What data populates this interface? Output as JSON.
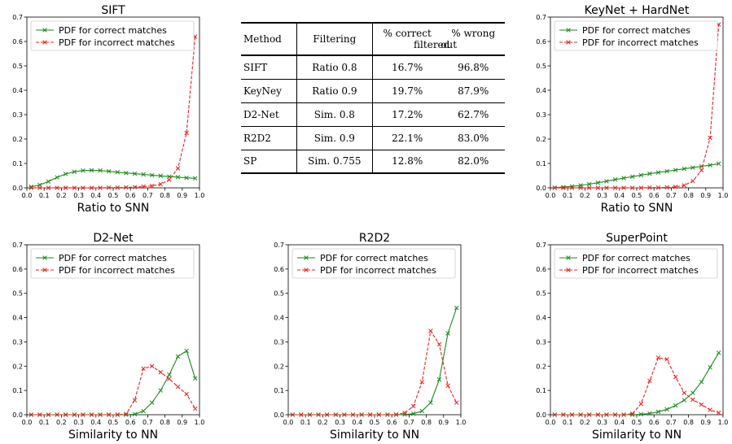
{
  "table": {
    "headers": [
      "Method",
      "Filtering",
      "% correct filtered",
      "% wrong out"
    ],
    "header_lines": [
      [
        "Method"
      ],
      [
        "Filtering"
      ],
      [
        "% correct",
        "filtered"
      ],
      [
        "% wrong",
        "out"
      ]
    ],
    "rows": [
      [
        "SIFT",
        "Ratio 0.8",
        "16.7%",
        "96.8%"
      ],
      [
        "KeyNey",
        "Ratio 0.9",
        "19.7%",
        "87.9%"
      ],
      [
        "D2-Net",
        "Sim. 0.8",
        "17.2%",
        "62.7%"
      ],
      [
        "R2D2",
        "Sim. 0.9",
        "22.1%",
        "83.0%"
      ],
      [
        "SP",
        "Sim. 0.755",
        "12.8%",
        "82.0%"
      ]
    ]
  },
  "colors": {
    "correct": "#1a8a1a",
    "incorrect": "#e8231f"
  },
  "chart_data": [
    {
      "type": "line",
      "title": "SIFT",
      "xlabel": "Ratio to SNN",
      "ylabel": "",
      "xlim": [
        0,
        1.0
      ],
      "ylim": [
        0,
        0.7
      ],
      "xticks": [
        "0.0",
        "0.1",
        "0.2",
        "0.3",
        "0.4",
        "0.5",
        "0.6",
        "0.7",
        "0.8",
        "0.9",
        "1.0"
      ],
      "yticks": [
        "0.0",
        "0.1",
        "0.2",
        "0.3",
        "0.4",
        "0.5",
        "0.6",
        "0.7"
      ],
      "grid": false,
      "legend": "top-left",
      "series": [
        {
          "name": "PDF for correct matches",
          "color": "#1a8a1a",
          "line": "solid",
          "marker": "x",
          "x": [
            0.025,
            0.075,
            0.125,
            0.175,
            0.225,
            0.275,
            0.325,
            0.375,
            0.425,
            0.475,
            0.525,
            0.575,
            0.625,
            0.675,
            0.725,
            0.775,
            0.825,
            0.875,
            0.925,
            0.975
          ],
          "y": [
            0.004,
            0.012,
            0.026,
            0.043,
            0.057,
            0.066,
            0.071,
            0.072,
            0.071,
            0.068,
            0.064,
            0.061,
            0.058,
            0.055,
            0.052,
            0.049,
            0.046,
            0.044,
            0.041,
            0.039
          ]
        },
        {
          "name": "PDF for incorrect matches",
          "color": "#e8231f",
          "line": "dashed",
          "marker": "x",
          "x": [
            0.025,
            0.075,
            0.125,
            0.175,
            0.225,
            0.275,
            0.325,
            0.375,
            0.425,
            0.475,
            0.525,
            0.575,
            0.625,
            0.675,
            0.725,
            0.775,
            0.825,
            0.875,
            0.925,
            0.975
          ],
          "y": [
            0,
            0,
            0,
            0,
            0,
            0,
            0,
            0,
            0,
            0.001,
            0.001,
            0.002,
            0.003,
            0.005,
            0.008,
            0.015,
            0.033,
            0.08,
            0.225,
            0.62
          ]
        }
      ]
    },
    {
      "type": "line",
      "title": "KeyNet + HardNet",
      "xlabel": "Ratio to SNN",
      "ylabel": "",
      "xlim": [
        0,
        1.0
      ],
      "ylim": [
        0,
        0.7
      ],
      "xticks": [
        "0.0",
        "0.1",
        "0.2",
        "0.3",
        "0.4",
        "0.5",
        "0.6",
        "0.7",
        "0.8",
        "0.9",
        "1.0"
      ],
      "yticks": [
        "0.0",
        "0.1",
        "0.2",
        "0.3",
        "0.4",
        "0.5",
        "0.6",
        "0.7"
      ],
      "grid": false,
      "legend": "top-left",
      "series": [
        {
          "name": "PDF for correct matches",
          "color": "#1a8a1a",
          "line": "solid",
          "marker": "x",
          "x": [
            0.025,
            0.075,
            0.125,
            0.175,
            0.225,
            0.275,
            0.325,
            0.375,
            0.425,
            0.475,
            0.525,
            0.575,
            0.625,
            0.675,
            0.725,
            0.775,
            0.825,
            0.875,
            0.925,
            0.975
          ],
          "y": [
            0.001,
            0.003,
            0.006,
            0.01,
            0.015,
            0.021,
            0.027,
            0.034,
            0.04,
            0.046,
            0.052,
            0.058,
            0.063,
            0.068,
            0.073,
            0.078,
            0.083,
            0.088,
            0.093,
            0.099
          ]
        },
        {
          "name": "PDF for incorrect matches",
          "color": "#e8231f",
          "line": "dashed",
          "marker": "x",
          "x": [
            0.025,
            0.075,
            0.125,
            0.175,
            0.225,
            0.275,
            0.325,
            0.375,
            0.425,
            0.475,
            0.525,
            0.575,
            0.625,
            0.675,
            0.725,
            0.775,
            0.825,
            0.875,
            0.925,
            0.975
          ],
          "y": [
            0,
            0,
            0,
            0,
            0,
            0,
            0,
            0,
            0,
            0,
            0,
            0.001,
            0.001,
            0.002,
            0.004,
            0.01,
            0.028,
            0.072,
            0.205,
            0.67
          ]
        }
      ]
    },
    {
      "type": "line",
      "title": "D2-Net",
      "xlabel": "Similarity to NN",
      "ylabel": "",
      "xlim": [
        0,
        1.0
      ],
      "ylim": [
        0,
        0.7
      ],
      "xticks": [
        "0.0",
        "0.1",
        "0.2",
        "0.3",
        "0.4",
        "0.5",
        "0.6",
        "0.7",
        "0.8",
        "0.9",
        "1.0"
      ],
      "yticks": [
        "0.0",
        "0.1",
        "0.2",
        "0.3",
        "0.4",
        "0.5",
        "0.6",
        "0.7"
      ],
      "grid": false,
      "legend": "top-left",
      "series": [
        {
          "name": "PDF for correct matches",
          "color": "#1a8a1a",
          "line": "solid",
          "marker": "x",
          "x": [
            0.025,
            0.075,
            0.125,
            0.175,
            0.225,
            0.275,
            0.325,
            0.375,
            0.425,
            0.475,
            0.525,
            0.575,
            0.625,
            0.675,
            0.725,
            0.775,
            0.825,
            0.875,
            0.925,
            0.975
          ],
          "y": [
            0,
            0,
            0,
            0,
            0,
            0,
            0,
            0,
            0,
            0,
            0,
            0,
            0.002,
            0.015,
            0.05,
            0.1,
            0.165,
            0.24,
            0.263,
            0.15
          ]
        },
        {
          "name": "PDF for incorrect matches",
          "color": "#e8231f",
          "line": "dashed",
          "marker": "x",
          "x": [
            0.025,
            0.075,
            0.125,
            0.175,
            0.225,
            0.275,
            0.325,
            0.375,
            0.425,
            0.475,
            0.525,
            0.575,
            0.625,
            0.675,
            0.725,
            0.775,
            0.825,
            0.875,
            0.925,
            0.975
          ],
          "y": [
            0,
            0,
            0,
            0,
            0,
            0,
            0,
            0,
            0,
            0,
            0,
            0.003,
            0.06,
            0.19,
            0.2,
            0.175,
            0.148,
            0.115,
            0.085,
            0.025
          ]
        }
      ]
    },
    {
      "type": "line",
      "title": "R2D2",
      "xlabel": "Similarity to NN",
      "ylabel": "",
      "xlim": [
        0,
        1.0
      ],
      "ylim": [
        0,
        0.7
      ],
      "xticks": [
        "0.0",
        "0.1",
        "0.2",
        "0.3",
        "0.4",
        "0.5",
        "0.6",
        "0.7",
        "0.8",
        "0.9",
        "1.0"
      ],
      "yticks": [
        "0.0",
        "0.1",
        "0.2",
        "0.3",
        "0.4",
        "0.5",
        "0.6",
        "0.7"
      ],
      "grid": false,
      "legend": "top-left",
      "series": [
        {
          "name": "PDF for correct matches",
          "color": "#1a8a1a",
          "line": "solid",
          "marker": "x",
          "x": [
            0.025,
            0.075,
            0.125,
            0.175,
            0.225,
            0.275,
            0.325,
            0.375,
            0.425,
            0.475,
            0.525,
            0.575,
            0.625,
            0.675,
            0.725,
            0.775,
            0.825,
            0.875,
            0.925,
            0.975
          ],
          "y": [
            0,
            0,
            0,
            0,
            0,
            0,
            0,
            0,
            0,
            0,
            0,
            0,
            0,
            0.001,
            0.004,
            0.015,
            0.05,
            0.145,
            0.335,
            0.44
          ]
        },
        {
          "name": "PDF for incorrect matches",
          "color": "#e8231f",
          "line": "dashed",
          "marker": "x",
          "x": [
            0.025,
            0.075,
            0.125,
            0.175,
            0.225,
            0.275,
            0.325,
            0.375,
            0.425,
            0.475,
            0.525,
            0.575,
            0.625,
            0.675,
            0.725,
            0.775,
            0.825,
            0.875,
            0.925,
            0.975
          ],
          "y": [
            0,
            0,
            0,
            0,
            0,
            0,
            0,
            0,
            0,
            0,
            0,
            0,
            0.001,
            0.008,
            0.035,
            0.135,
            0.345,
            0.29,
            0.12,
            0.05
          ]
        }
      ]
    },
    {
      "type": "line",
      "title": "SuperPoint",
      "xlabel": "Similarity to NN",
      "ylabel": "",
      "xlim": [
        0,
        1.0
      ],
      "ylim": [
        0,
        0.7
      ],
      "xticks": [
        "0.0",
        "0.1",
        "0.2",
        "0.3",
        "0.4",
        "0.5",
        "0.6",
        "0.7",
        "0.8",
        "0.9",
        "1.0"
      ],
      "yticks": [
        "0.0",
        "0.1",
        "0.2",
        "0.3",
        "0.4",
        "0.5",
        "0.6",
        "0.7"
      ],
      "grid": false,
      "legend": "top-left",
      "series": [
        {
          "name": "PDF for correct matches",
          "color": "#1a8a1a",
          "line": "solid",
          "marker": "x",
          "x": [
            0.025,
            0.075,
            0.125,
            0.175,
            0.225,
            0.275,
            0.325,
            0.375,
            0.425,
            0.475,
            0.525,
            0.575,
            0.625,
            0.675,
            0.725,
            0.775,
            0.825,
            0.875,
            0.925,
            0.975
          ],
          "y": [
            0,
            0,
            0,
            0,
            0,
            0,
            0,
            0,
            0,
            0,
            0.002,
            0.005,
            0.012,
            0.022,
            0.038,
            0.06,
            0.09,
            0.135,
            0.195,
            0.255
          ]
        },
        {
          "name": "PDF for incorrect matches",
          "color": "#e8231f",
          "line": "dashed",
          "marker": "x",
          "x": [
            0.025,
            0.075,
            0.125,
            0.175,
            0.225,
            0.275,
            0.325,
            0.375,
            0.425,
            0.475,
            0.525,
            0.575,
            0.625,
            0.675,
            0.725,
            0.775,
            0.825,
            0.875,
            0.925,
            0.975
          ],
          "y": [
            0,
            0,
            0,
            0,
            0,
            0,
            0,
            0,
            0,
            0.004,
            0.045,
            0.14,
            0.235,
            0.228,
            0.155,
            0.09,
            0.062,
            0.042,
            0.02,
            0.008
          ]
        }
      ]
    }
  ]
}
